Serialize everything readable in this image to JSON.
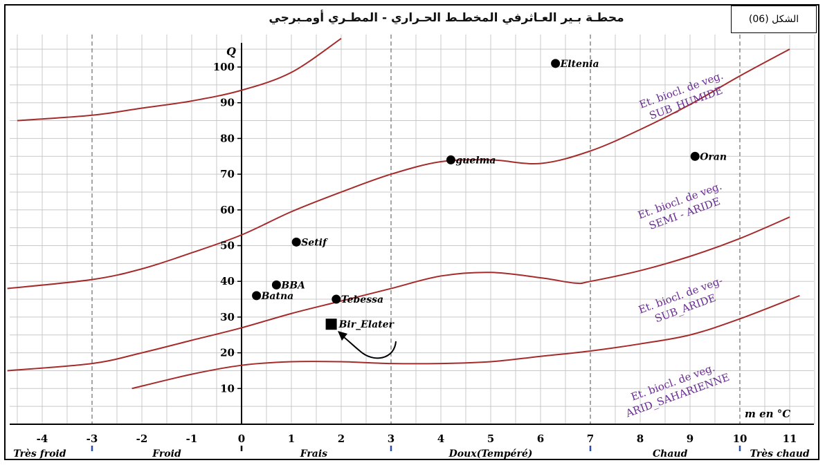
{
  "title": "محطـة بـير العـاثرفي المخطـط الحـراري - المطـري أومـبرجي",
  "figure_label": "الشكل (06)",
  "colors": {
    "grid": "#c8c8c8",
    "curve": "#a52a2a",
    "zone_text": "#6a2c91",
    "axis": "#000000"
  },
  "chart_data": {
    "type": "scatter",
    "title": "محطـة بـير العـاثرفي المخطـط الحـراري - المطـري أومـبرجي",
    "xlabel": "m en °C",
    "ylabel": "Q",
    "xlim": [
      -4.7,
      11.5
    ],
    "ylim": [
      0,
      110
    ],
    "grid": true,
    "x_ticks": [
      -4,
      -3,
      -2,
      -1,
      0,
      1,
      2,
      3,
      4,
      5,
      6,
      7,
      8,
      9,
      10,
      11
    ],
    "y_ticks": [
      10,
      20,
      30,
      40,
      50,
      60,
      70,
      80,
      90,
      100
    ],
    "dashed_x": [
      -3,
      3,
      7,
      10
    ],
    "points": [
      {
        "name": "Eltenia",
        "x": 6.3,
        "y": 101,
        "marker": "circle"
      },
      {
        "name": "guelma",
        "x": 4.2,
        "y": 74,
        "marker": "circle"
      },
      {
        "name": "Oran",
        "x": 9.1,
        "y": 75,
        "marker": "circle"
      },
      {
        "name": "Setif",
        "x": 1.1,
        "y": 51,
        "marker": "circle"
      },
      {
        "name": "BBA",
        "x": 0.7,
        "y": 39,
        "marker": "circle"
      },
      {
        "name": "Batna",
        "x": 0.3,
        "y": 36,
        "marker": "circle"
      },
      {
        "name": "Tebessa",
        "x": 1.9,
        "y": 35,
        "marker": "circle"
      },
      {
        "name": "Bir_Elater",
        "x": 1.8,
        "y": 28,
        "marker": "square"
      }
    ],
    "boundaries": [
      {
        "x": [
          -4.5,
          -3,
          -2,
          -1,
          0,
          1,
          2
        ],
        "y": [
          85,
          86.5,
          88.5,
          90.5,
          93.5,
          98.5,
          108
        ]
      },
      {
        "x": [
          -4.7,
          -3,
          -2,
          -1,
          0,
          1,
          2,
          3,
          4,
          5,
          6,
          7,
          8,
          9,
          10,
          11
        ],
        "y": [
          38,
          40.5,
          43.5,
          48,
          53,
          59.5,
          65,
          70,
          73.5,
          74,
          73,
          76.5,
          82.5,
          89.5,
          97.5,
          105
        ]
      },
      {
        "x": [
          -4.7,
          -3,
          -2,
          -1,
          0,
          1,
          2,
          3,
          4,
          5,
          6,
          6.7,
          7,
          8,
          9,
          10,
          11
        ],
        "y": [
          15,
          17,
          20,
          23.5,
          27,
          31,
          34.5,
          38,
          41.5,
          42.5,
          41,
          39.5,
          40,
          43,
          47,
          52,
          58
        ]
      },
      {
        "x": [
          -2.2,
          -1,
          0,
          1,
          2,
          3,
          4,
          5,
          6,
          7,
          8,
          9,
          10,
          11.2
        ],
        "y": [
          10,
          14,
          16.5,
          17.5,
          17.5,
          17,
          17,
          17.5,
          19,
          20.5,
          22.5,
          25,
          29.5,
          36
        ]
      }
    ],
    "zones": [
      {
        "line1": "Et. biocl. de veg.",
        "line2": "SUB_HUMIDE"
      },
      {
        "line1": "Et. biocl. de veg.",
        "line2": "SEMI - ARIDE"
      },
      {
        "line1": "Et. biocl. de veg-",
        "line2": "SUB_ARIDE"
      },
      {
        "line1": "Et. biocl. de veg.",
        "line2": "ARID_SAHARIENNE"
      }
    ],
    "climate_classes": [
      "Très froid",
      "Froid",
      "Frais",
      "Doux(Tempéré)",
      "Chaud",
      "Très chaud"
    ]
  }
}
